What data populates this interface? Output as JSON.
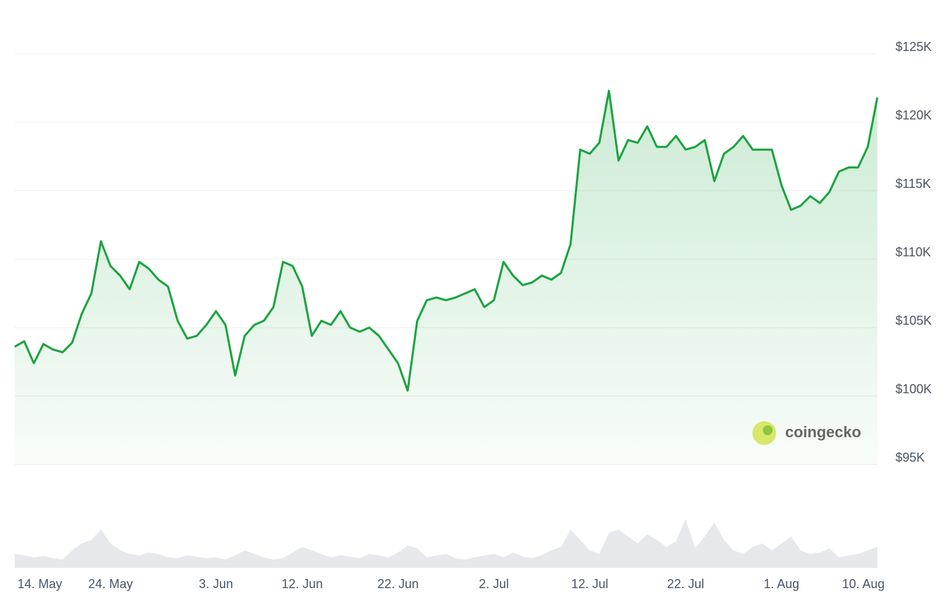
{
  "chart_data": {
    "type": "line",
    "categories": [
      null,
      "14. May",
      null,
      null,
      null,
      null,
      null,
      null,
      null,
      null,
      "24. May",
      null,
      null,
      null,
      null,
      null,
      null,
      null,
      null,
      null,
      null,
      "3. Jun",
      null,
      null,
      null,
      null,
      null,
      null,
      null,
      null,
      "12. Jun",
      null,
      null,
      null,
      null,
      null,
      null,
      null,
      null,
      null,
      "22. Jun",
      null,
      null,
      null,
      null,
      null,
      null,
      null,
      null,
      null,
      "2. Jul",
      null,
      null,
      null,
      null,
      null,
      null,
      null,
      null,
      null,
      "12. Jul",
      null,
      null,
      null,
      null,
      null,
      null,
      null,
      null,
      null,
      "22. Jul",
      null,
      null,
      null,
      null,
      null,
      null,
      null,
      null,
      null,
      "1. Aug",
      null,
      null,
      null,
      null,
      null,
      null,
      null,
      null,
      "10. Aug",
      null
    ],
    "values": [
      103600,
      104000,
      102400,
      103800,
      103400,
      103200,
      103900,
      106000,
      107500,
      111300,
      109500,
      108800,
      107800,
      109800,
      109300,
      108500,
      108000,
      105500,
      104200,
      104400,
      105200,
      106200,
      105200,
      101500,
      104400,
      105200,
      105500,
      106500,
      109800,
      109500,
      108000,
      104400,
      105500,
      105200,
      106200,
      105000,
      104700,
      105000,
      104400,
      103400,
      102400,
      100400,
      105500,
      107000,
      107200,
      107000,
      107200,
      107500,
      107800,
      106500,
      107000,
      109800,
      108800,
      108100,
      108300,
      108800,
      108500,
      109000,
      111100,
      118000,
      117700,
      118500,
      122300,
      117200,
      118700,
      118500,
      119700,
      118200,
      118200,
      119000,
      118000,
      118200,
      118700,
      115700,
      117700,
      118200,
      119000,
      118000,
      118000,
      118000,
      115400,
      113600,
      113900,
      114600,
      114100,
      114900,
      116400,
      116700,
      116700,
      118200,
      121800
    ],
    "color": "#1aa33f",
    "area": true,
    "ylim": [
      95000,
      125000
    ],
    "yticks": [
      {
        "value": 95000,
        "label": "$95K"
      },
      {
        "value": 100000,
        "label": "$100K"
      },
      {
        "value": 105000,
        "label": "$105K"
      },
      {
        "value": 110000,
        "label": "$110K"
      },
      {
        "value": 115000,
        "label": "$115K"
      },
      {
        "value": 120000,
        "label": "$120K"
      },
      {
        "value": 125000,
        "label": "$125K"
      }
    ],
    "grid": true,
    "volume": [
      20,
      18,
      15,
      17,
      14,
      12,
      25,
      35,
      40,
      55,
      35,
      25,
      20,
      18,
      22,
      20,
      15,
      14,
      18,
      16,
      14,
      15,
      12,
      18,
      25,
      20,
      15,
      12,
      14,
      22,
      30,
      25,
      20,
      15,
      18,
      16,
      14,
      20,
      18,
      15,
      22,
      32,
      28,
      15,
      18,
      20,
      14,
      12,
      15,
      18,
      20,
      15,
      22,
      16,
      14,
      18,
      25,
      30,
      55,
      40,
      25,
      20,
      50,
      55,
      45,
      35,
      48,
      40,
      30,
      38,
      70,
      28,
      45,
      65,
      40,
      25,
      20,
      30,
      35,
      25,
      35,
      45,
      25,
      20,
      22,
      28,
      15,
      18,
      20,
      25,
      30
    ],
    "volume_lim": [
      0,
      110
    ],
    "volume_color": "#e6e8eb",
    "logo_text": "coingecko"
  }
}
